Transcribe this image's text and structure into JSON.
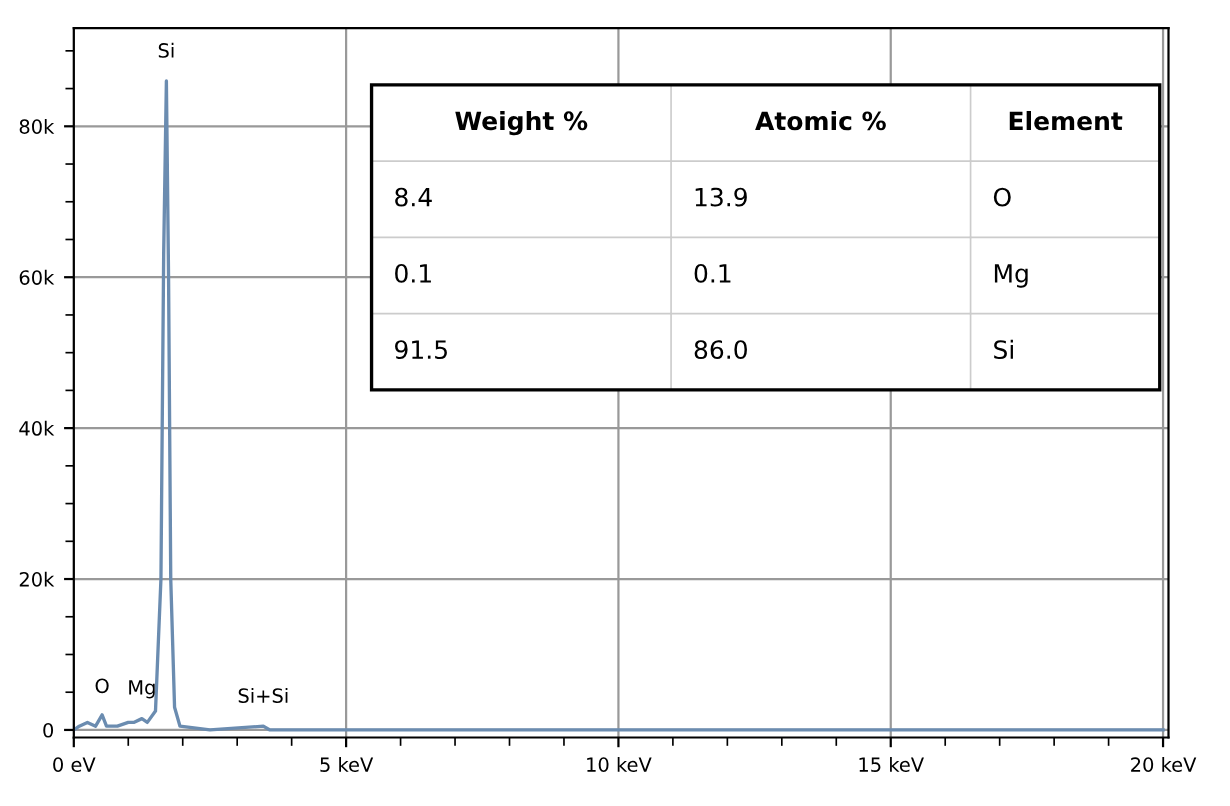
{
  "chart_data": {
    "type": "line",
    "x": [
      0,
      0.1,
      0.25,
      0.4,
      0.52,
      0.6,
      0.8,
      1.0,
      1.1,
      1.25,
      1.35,
      1.5,
      1.6,
      1.65,
      1.7,
      1.74,
      1.78,
      1.85,
      1.95,
      2.5,
      3.48,
      3.6,
      5,
      10,
      15,
      20
    ],
    "values": [
      0,
      500,
      1000,
      500,
      2000,
      500,
      500,
      1000,
      1000,
      1500,
      1000,
      2500,
      20000,
      63000,
      86000,
      60000,
      20000,
      3000,
      500,
      0,
      500,
      0,
      0,
      0,
      0,
      0
    ],
    "color": "#6b8cb0",
    "xlim": [
      0,
      20.1
    ],
    "ylim": [
      -1000,
      93000
    ],
    "xticks": [
      {
        "value": 0,
        "label": "0 eV"
      },
      {
        "value": 5,
        "label": "5 keV"
      },
      {
        "value": 10,
        "label": "10 keV"
      },
      {
        "value": 15,
        "label": "15 keV"
      },
      {
        "value": 20,
        "label": "20 keV"
      }
    ],
    "yticks": [
      0,
      {
        "value": 20000,
        "label": "20k"
      },
      {
        "value": 40000,
        "label": "40k"
      },
      {
        "value": 60000,
        "label": "60k"
      },
      {
        "value": 80000,
        "label": "80k"
      }
    ],
    "grid": true,
    "marker": "none",
    "line_style": "solid",
    "annotations": [
      {
        "text": "Si",
        "x": 1.7,
        "y": 86000
      },
      {
        "text": "O",
        "x": 0.52,
        "y": 1800
      },
      {
        "text": "Mg",
        "x": 1.25,
        "y": 1600
      },
      {
        "text": "Si+Si",
        "x": 3.48,
        "y": 500
      },
      "Weight %",
      "Atomic %",
      "Element",
      "8.4",
      "13.9",
      "O",
      "0.1",
      "0.1",
      "Mg",
      "91.5",
      "86.0",
      "Si"
    ]
  }
}
